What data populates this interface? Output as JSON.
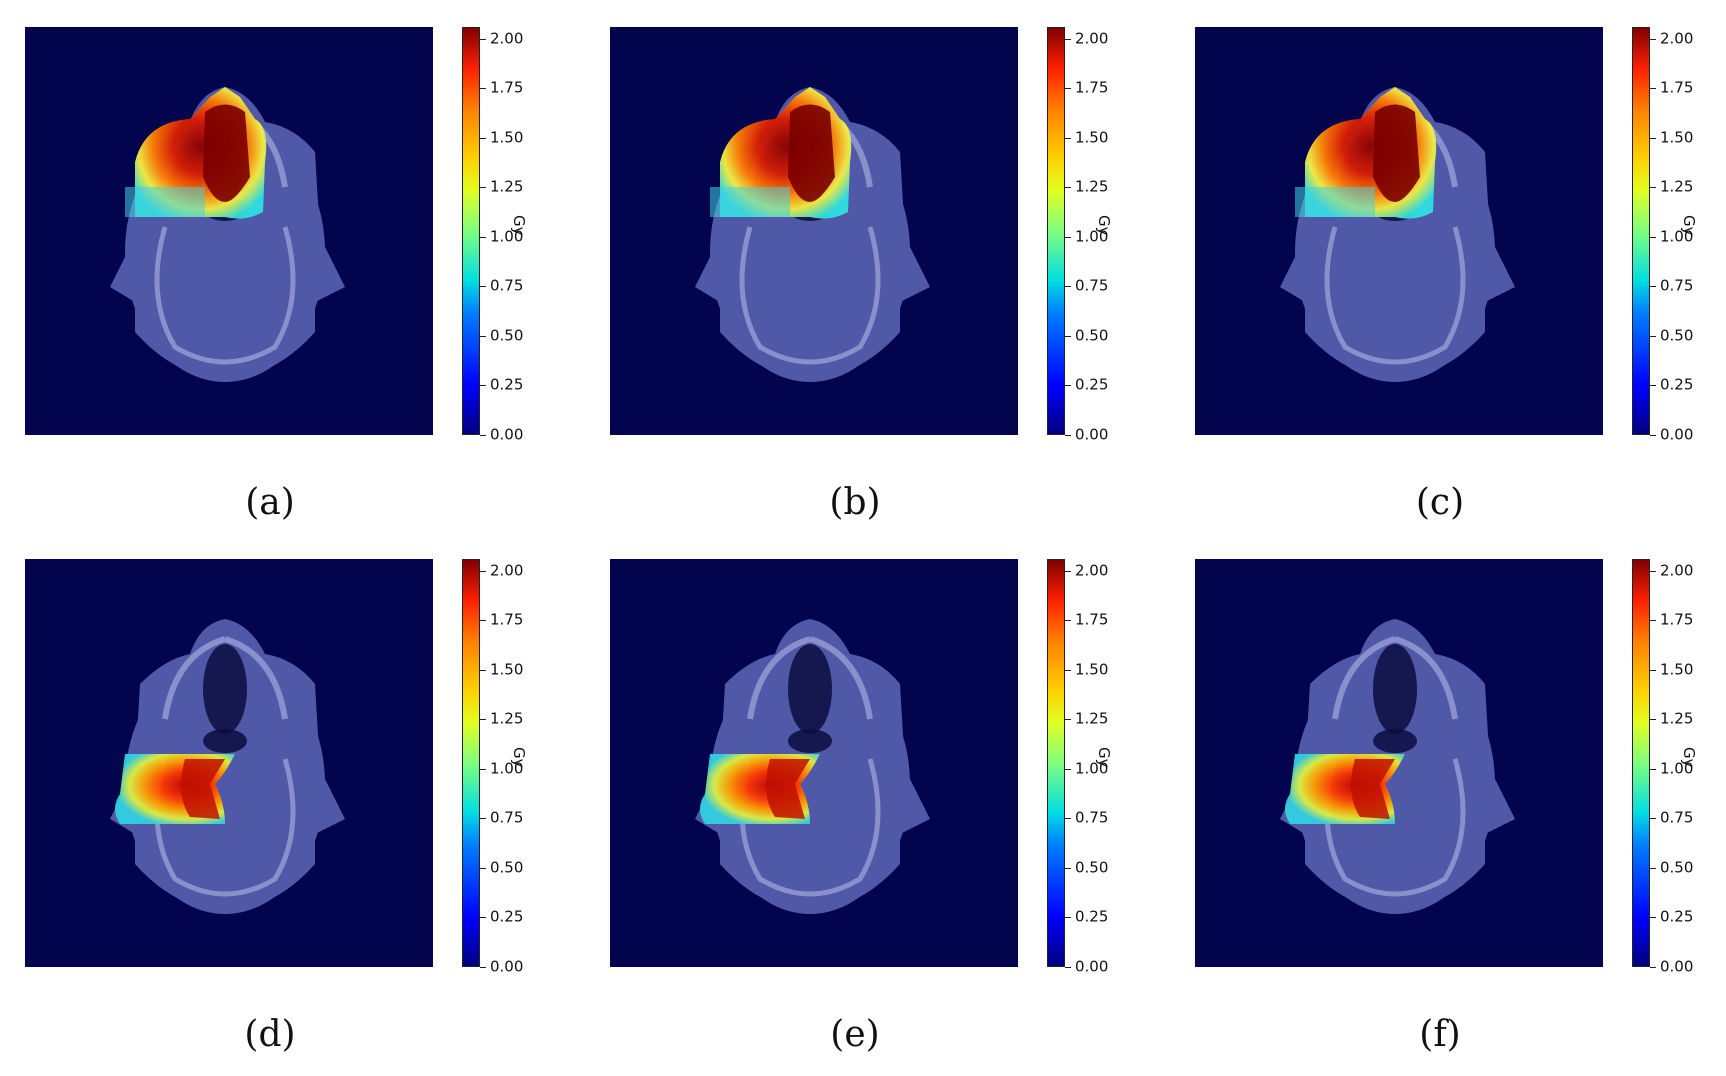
{
  "panels": [
    {
      "label": "(a)",
      "dose_region": "anterior"
    },
    {
      "label": "(b)",
      "dose_region": "anterior"
    },
    {
      "label": "(c)",
      "dose_region": "anterior"
    },
    {
      "label": "(d)",
      "dose_region": "lateral"
    },
    {
      "label": "(e)",
      "dose_region": "lateral"
    },
    {
      "label": "(f)",
      "dose_region": "lateral"
    }
  ],
  "colorbar": {
    "unit": "Gy",
    "ticks": [
      "0.00",
      "0.25",
      "0.50",
      "0.75",
      "1.00",
      "1.25",
      "1.50",
      "1.75",
      "2.00"
    ],
    "tick_values": [
      0,
      0.25,
      0.5,
      0.75,
      1.0,
      1.25,
      1.5,
      1.75,
      2.0
    ],
    "vmin": 0,
    "vmax": 2.06,
    "colormap": "jet"
  },
  "colors": {
    "background_field": "#02054d",
    "tissue": "#5059a8",
    "bone": "#8a90cc"
  }
}
